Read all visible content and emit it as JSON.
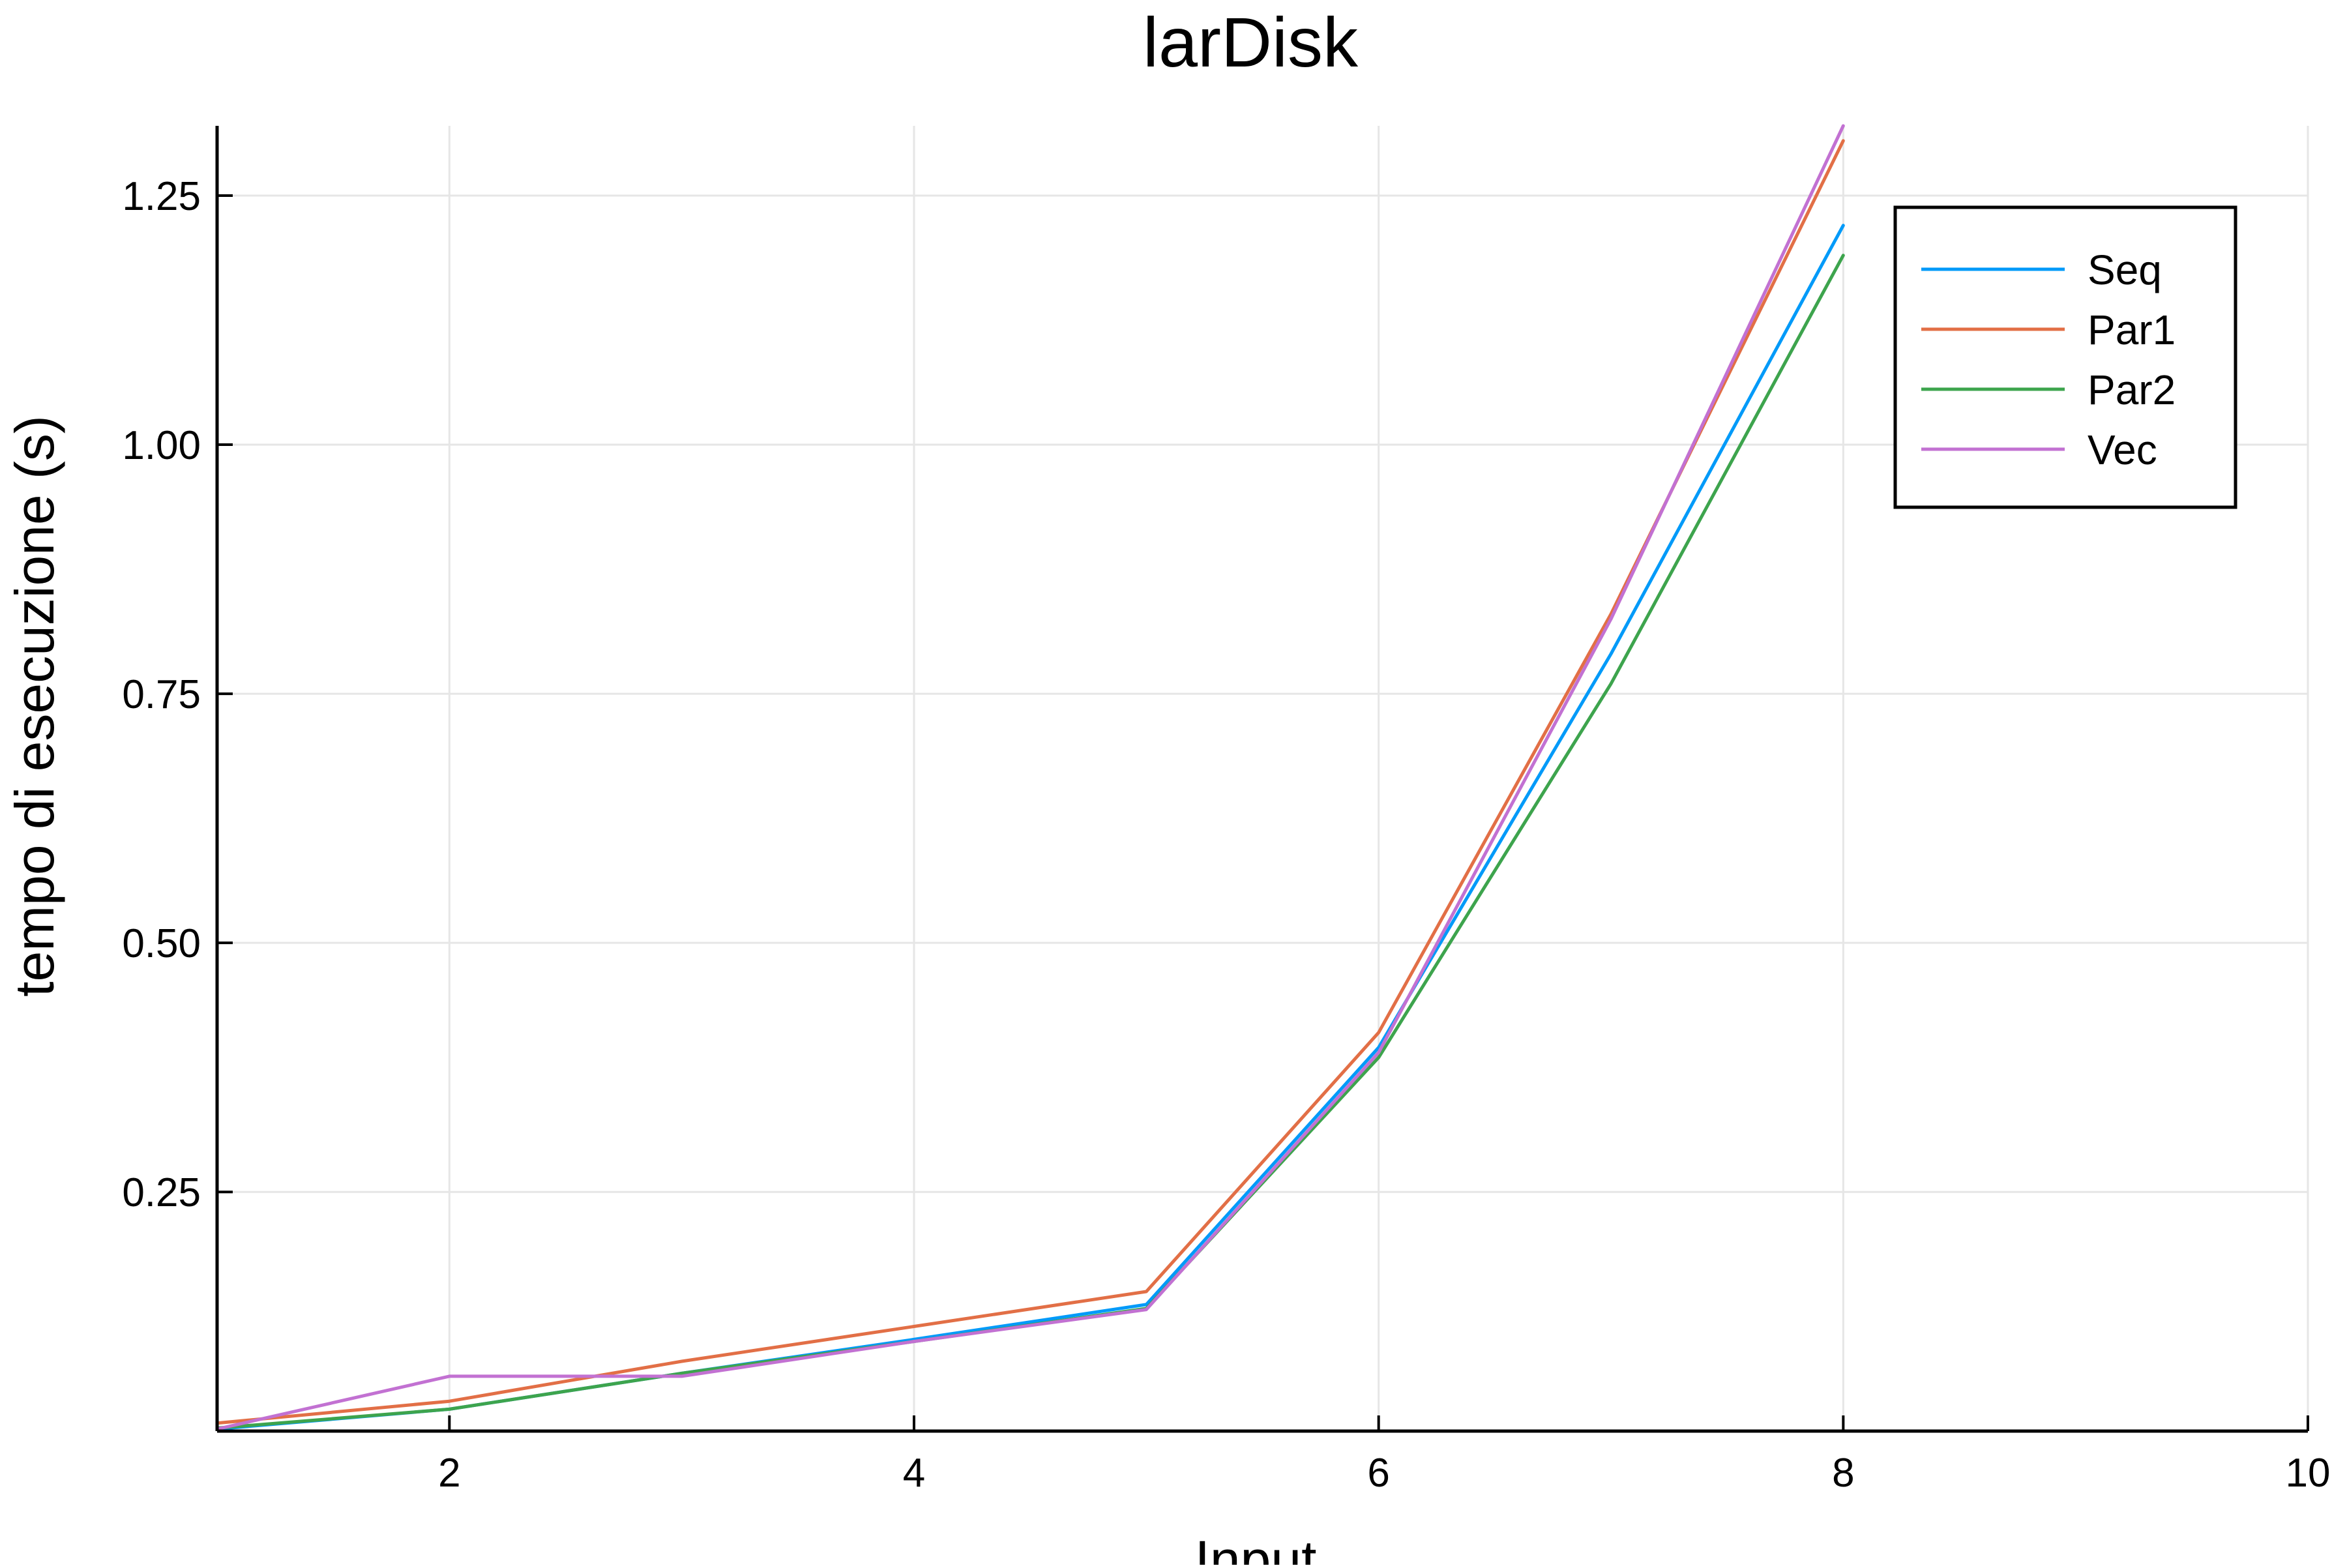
{
  "chart_data": {
    "type": "line",
    "title": "larDisk",
    "xlabel": "Input",
    "ylabel": "tempo di esecuzione (s)",
    "xlim": [
      1,
      10
    ],
    "ylim": [
      0.01,
      1.32
    ],
    "xticks": [
      2,
      4,
      6,
      8,
      10
    ],
    "xtick_labels": [
      "2",
      "4",
      "6",
      "8",
      "10"
    ],
    "yticks": [
      0.25,
      0.5,
      0.75,
      1.0,
      1.25
    ],
    "ytick_labels": [
      "0.25",
      "0.50",
      "0.75",
      "1.00",
      "1.25"
    ],
    "grid": true,
    "legend_position": "top-right",
    "x": [
      1,
      2,
      3,
      4,
      5,
      6,
      7,
      8
    ],
    "series": [
      {
        "name": "Seq",
        "color": "#009af9",
        "values": [
          0.012,
          0.032,
          0.068,
          0.102,
          0.137,
          0.395,
          0.79,
          1.22
        ]
      },
      {
        "name": "Par1",
        "color": "#e26f46",
        "values": [
          0.018,
          0.04,
          0.08,
          0.115,
          0.15,
          0.41,
          0.83,
          1.305
        ]
      },
      {
        "name": "Par2",
        "color": "#3da44d",
        "values": [
          0.013,
          0.032,
          0.068,
          0.1,
          0.133,
          0.385,
          0.76,
          1.19
        ]
      },
      {
        "name": "Vec",
        "color": "#c271d2",
        "values": [
          0.012,
          0.065,
          0.065,
          0.1,
          0.132,
          0.39,
          0.825,
          1.32
        ]
      }
    ]
  }
}
